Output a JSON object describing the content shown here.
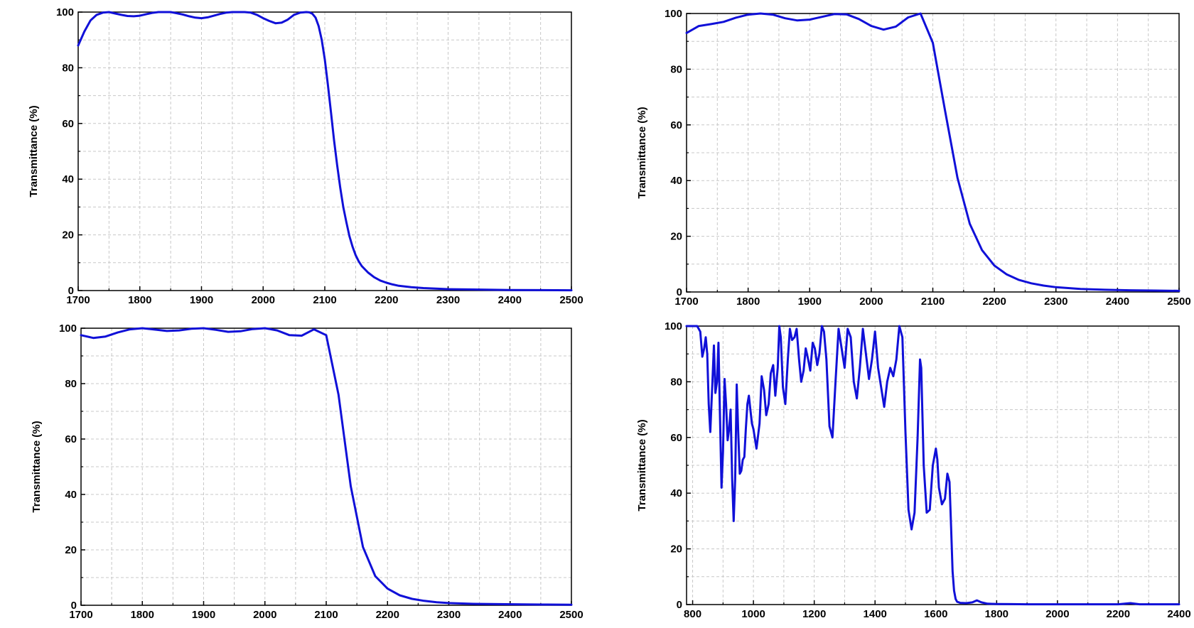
{
  "chart_data": [
    {
      "type": "line",
      "title": "",
      "xlabel": "",
      "ylabel": "Transmittance (%)",
      "xlim": [
        1700,
        2500
      ],
      "ylim": [
        0,
        100
      ],
      "xticks": [
        1700,
        1800,
        1900,
        2000,
        2100,
        2200,
        2300,
        2400,
        2500
      ],
      "yticks": [
        0,
        20,
        40,
        60,
        80,
        100
      ],
      "grid": true,
      "line_color": "#1010d8",
      "series": [
        {
          "x": [
            1700,
            1710,
            1720,
            1730,
            1740,
            1750,
            1760,
            1770,
            1780,
            1790,
            1800,
            1810,
            1820,
            1830,
            1840,
            1850,
            1860,
            1870,
            1880,
            1890,
            1900,
            1910,
            1920,
            1930,
            1940,
            1950,
            1960,
            1970,
            1980,
            1990,
            2000,
            2010,
            2020,
            2030,
            2040,
            2050,
            2060,
            2070,
            2075,
            2080,
            2085,
            2090,
            2095,
            2100,
            2105,
            2110,
            2115,
            2120,
            2125,
            2130,
            2135,
            2140,
            2145,
            2150,
            2155,
            2160,
            2170,
            2180,
            2190,
            2200,
            2210,
            2220,
            2240,
            2260,
            2280,
            2300,
            2330,
            2360,
            2400,
            2450,
            2500
          ],
          "y": [
            88,
            93,
            97,
            99,
            99.8,
            100,
            99.5,
            99,
            98.6,
            98.5,
            98.7,
            99.2,
            99.7,
            100,
            100,
            100,
            99.6,
            99.1,
            98.5,
            98,
            97.8,
            98.1,
            98.7,
            99.3,
            99.8,
            100,
            100,
            100,
            99.8,
            99,
            97.8,
            96.8,
            96,
            96.2,
            97.3,
            99,
            99.8,
            100,
            99.9,
            99.4,
            98,
            95,
            90,
            83,
            74,
            64,
            54,
            45,
            37,
            30,
            24.5,
            19.5,
            15.8,
            12.7,
            10.5,
            8.8,
            6.5,
            4.8,
            3.6,
            2.8,
            2.2,
            1.7,
            1.2,
            0.9,
            0.7,
            0.5,
            0.4,
            0.3,
            0.2,
            0.15,
            0.1
          ]
        }
      ]
    },
    {
      "type": "line",
      "title": "",
      "xlabel": "",
      "ylabel": "Transmittance (%)",
      "xlim": [
        1700,
        2500
      ],
      "ylim": [
        0,
        100
      ],
      "xticks": [
        1700,
        1800,
        1900,
        2000,
        2100,
        2200,
        2300,
        2400,
        2500
      ],
      "yticks": [
        0,
        20,
        40,
        60,
        80,
        100
      ],
      "grid": true,
      "line_color": "#1010d8",
      "series": [
        {
          "x": [
            1700,
            1720,
            1740,
            1760,
            1780,
            1800,
            1820,
            1840,
            1860,
            1880,
            1900,
            1920,
            1940,
            1960,
            1980,
            2000,
            2020,
            2040,
            2060,
            2080,
            2100,
            2120,
            2140,
            2160,
            2180,
            2200,
            2220,
            2240,
            2260,
            2280,
            2300,
            2340,
            2380,
            2420,
            2460,
            2500
          ],
          "y": [
            93,
            95.5,
            96.2,
            97,
            98.5,
            99.6,
            100,
            99.6,
            98.3,
            97.5,
            97.8,
            98.8,
            99.8,
            99.7,
            98,
            95.5,
            94.2,
            95.3,
            98.6,
            100,
            89.5,
            65,
            41,
            24.5,
            15,
            9.5,
            6.3,
            4.3,
            3.1,
            2.3,
            1.7,
            1.1,
            0.8,
            0.6,
            0.5,
            0.4
          ]
        }
      ]
    },
    {
      "type": "line",
      "title": "",
      "xlabel": "",
      "ylabel": "Transmittance (%)",
      "xlim": [
        1700,
        2500
      ],
      "ylim": [
        0,
        100
      ],
      "xticks": [
        1700,
        1800,
        1900,
        2000,
        2100,
        2200,
        2300,
        2400,
        2500
      ],
      "yticks": [
        0,
        20,
        40,
        60,
        80,
        100
      ],
      "grid": true,
      "line_color": "#1010d8",
      "series": [
        {
          "x": [
            1700,
            1720,
            1740,
            1760,
            1780,
            1800,
            1820,
            1840,
            1860,
            1880,
            1900,
            1920,
            1940,
            1960,
            1980,
            2000,
            2020,
            2040,
            2060,
            2080,
            2100,
            2120,
            2140,
            2160,
            2180,
            2200,
            2220,
            2240,
            2260,
            2280,
            2300,
            2340,
            2380,
            2420,
            2460,
            2500
          ],
          "y": [
            97.5,
            96.5,
            97,
            98.5,
            99.6,
            100,
            99.5,
            99,
            99.2,
            99.8,
            100,
            99.4,
            98.7,
            98.9,
            99.7,
            100,
            99.2,
            97.5,
            97.3,
            99.6,
            97.5,
            76,
            43,
            21,
            10.5,
            6,
            3.6,
            2.3,
            1.6,
            1.1,
            0.8,
            0.5,
            0.4,
            0.3,
            0.25,
            0.2
          ]
        }
      ]
    },
    {
      "type": "line",
      "title": "",
      "xlabel": "",
      "ylabel": "Transmittance (%)",
      "xlim": [
        780,
        2400
      ],
      "ylim": [
        0,
        100
      ],
      "xticks": [
        800,
        1000,
        1200,
        1400,
        1600,
        1800,
        2000,
        2200,
        2400
      ],
      "yticks": [
        0,
        20,
        40,
        60,
        80,
        100
      ],
      "grid": true,
      "line_color": "#1010d8",
      "series": [
        {
          "x": [
            780,
            800,
            815,
            825,
            832,
            838,
            843,
            848,
            853,
            858,
            865,
            870,
            875,
            880,
            885,
            890,
            895,
            900,
            905,
            910,
            915,
            920,
            925,
            930,
            935,
            940,
            945,
            950,
            955,
            960,
            965,
            970,
            975,
            980,
            985,
            990,
            995,
            1000,
            1010,
            1020,
            1027,
            1035,
            1042,
            1050,
            1057,
            1065,
            1072,
            1080,
            1085,
            1090,
            1097,
            1105,
            1113,
            1120,
            1127,
            1135,
            1142,
            1150,
            1157,
            1165,
            1172,
            1180,
            1187,
            1195,
            1202,
            1210,
            1217,
            1225,
            1232,
            1240,
            1250,
            1260,
            1270,
            1280,
            1290,
            1300,
            1310,
            1320,
            1330,
            1340,
            1350,
            1360,
            1370,
            1380,
            1390,
            1400,
            1410,
            1420,
            1430,
            1440,
            1450,
            1460,
            1470,
            1480,
            1490,
            1500,
            1510,
            1520,
            1530,
            1540,
            1548,
            1552,
            1560,
            1570,
            1580,
            1590,
            1600,
            1605,
            1610,
            1620,
            1630,
            1638,
            1645,
            1650,
            1655,
            1660,
            1665,
            1670,
            1680,
            1700,
            1720,
            1735,
            1750,
            1770,
            1800,
            1850,
            1900,
            2000,
            2100,
            2200,
            2240,
            2270,
            2300,
            2400
          ],
          "y": [
            100,
            100,
            100,
            98,
            89,
            92,
            96,
            90,
            72,
            62,
            80,
            93,
            76,
            80,
            94,
            67,
            42,
            55,
            81,
            72,
            59,
            63,
            70,
            45,
            30,
            45,
            79,
            62,
            47,
            48,
            52,
            53,
            63,
            72,
            75,
            70,
            65,
            63,
            56,
            65,
            82,
            77,
            68,
            72,
            83,
            86,
            75,
            85,
            100,
            96,
            78,
            72,
            88,
            99,
            95,
            96,
            99,
            88,
            80,
            84,
            92,
            88,
            84,
            94,
            92,
            86,
            90,
            100,
            98,
            88,
            64,
            60,
            80,
            99,
            92,
            85,
            99,
            96,
            80,
            74,
            85,
            99,
            90,
            81,
            88,
            98,
            85,
            78,
            71,
            80,
            85,
            82,
            88,
            100,
            96,
            62,
            34,
            27,
            33,
            60,
            88,
            85,
            50,
            33,
            34,
            50,
            56,
            52,
            42,
            36,
            38,
            47,
            44,
            28,
            12,
            5,
            2,
            1,
            0.6,
            0.5,
            0.8,
            1.5,
            0.8,
            0.3,
            0.2,
            0.15,
            0.1,
            0.1,
            0.1,
            0.1,
            0.5,
            0.1,
            0.1,
            0.1
          ]
        }
      ]
    }
  ]
}
